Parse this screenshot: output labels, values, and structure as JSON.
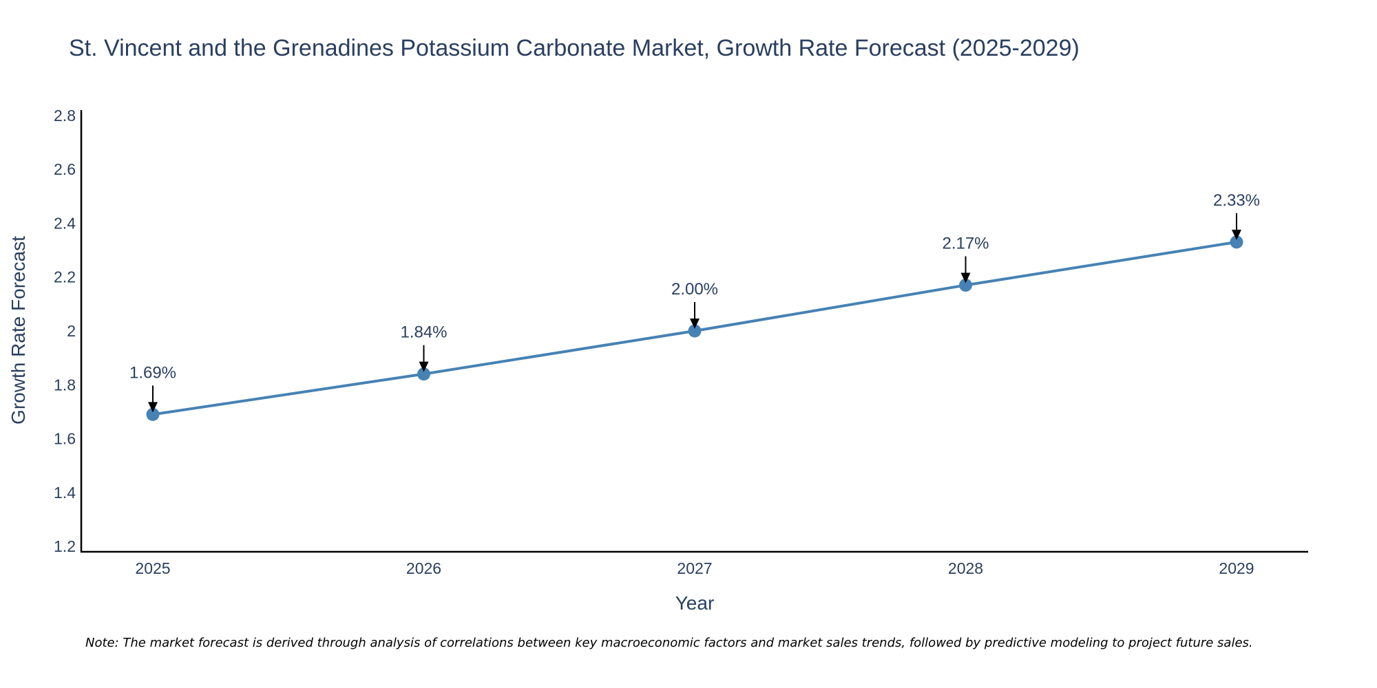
{
  "chart_data": {
    "type": "line",
    "title": "St. Vincent and the Grenadines Potassium Carbonate Market, Growth Rate Forecast (2025-2029)",
    "xlabel": "Year",
    "ylabel": "Growth Rate Forecast",
    "categories": [
      "2025",
      "2026",
      "2027",
      "2028",
      "2029"
    ],
    "series": [
      {
        "name": "Growth Rate Forecast",
        "values": [
          1.69,
          1.84,
          2.0,
          2.17,
          2.33
        ],
        "labels": [
          "1.69%",
          "1.84%",
          "2.00%",
          "2.17%",
          "2.33%"
        ],
        "color": "#4682b4"
      }
    ],
    "ylim": [
      1.18,
      2.82
    ],
    "yticks": [
      1.2,
      1.4,
      1.6,
      1.8,
      2,
      2.2,
      2.4,
      2.6,
      2.8
    ],
    "ytick_labels": [
      "1.2",
      "1.4",
      "1.6",
      "1.8",
      "2",
      "2.2",
      "2.4",
      "2.6",
      "2.8"
    ],
    "grid": false,
    "note": "Note: The market forecast is derived through analysis of correlations between key macroeconomic factors and market sales trends, followed by predictive modeling to project future sales."
  }
}
